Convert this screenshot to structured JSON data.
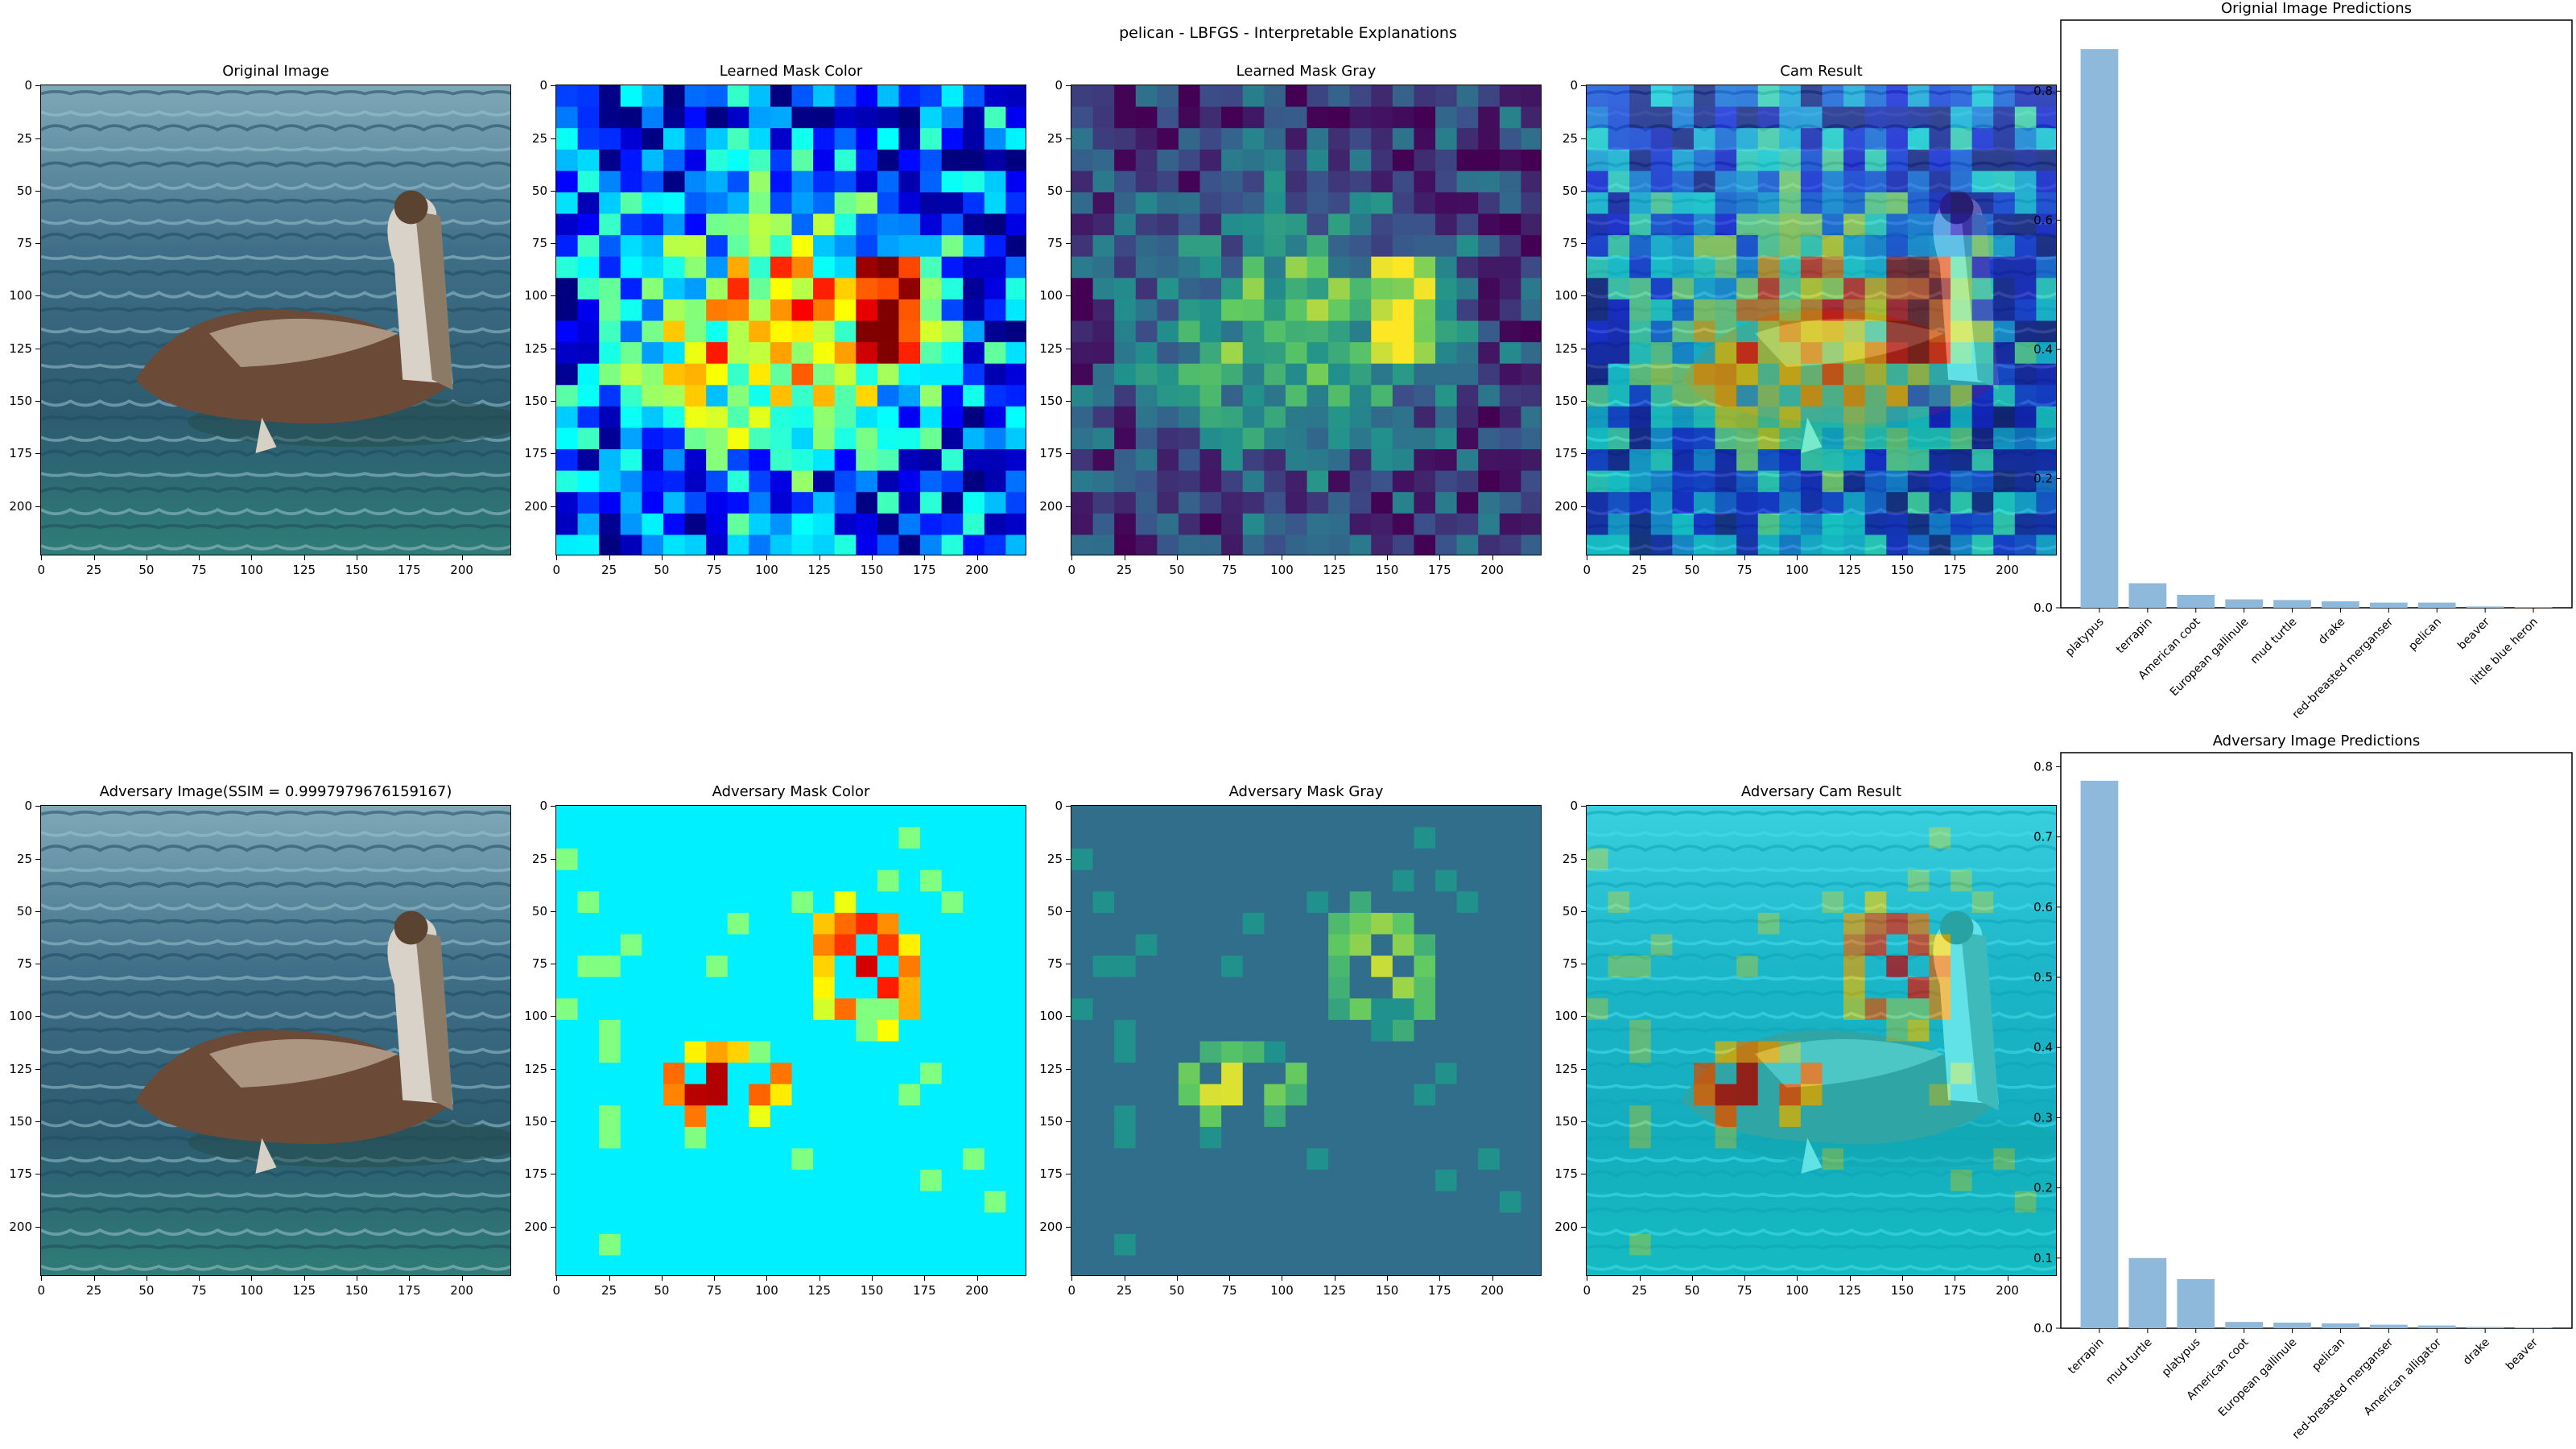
{
  "figure": {
    "title": "pelican - LBFGS - Interpretable Explanations"
  },
  "image_panels": [
    {
      "title": "Original Image",
      "kind": "photo"
    },
    {
      "title": "Learned Mask Color",
      "kind": "mask-jet",
      "mask": "learned"
    },
    {
      "title": "Learned Mask Gray",
      "kind": "mask-viridis",
      "mask": "learned"
    },
    {
      "title": "Cam Result",
      "kind": "cam",
      "mask": "learned"
    },
    {
      "title": "Adversary Image(SSIM = 0.9997979676159167)",
      "kind": "photo"
    },
    {
      "title": "Adversary Mask Color",
      "kind": "mask-jet",
      "mask": "adversary"
    },
    {
      "title": "Adversary Mask Gray",
      "kind": "mask-viridis",
      "mask": "adversary"
    },
    {
      "title": "Adversary Cam Result",
      "kind": "cam",
      "mask": "adversary"
    }
  ],
  "image_axes": {
    "x_ticks": [
      "0",
      "25",
      "50",
      "75",
      "100",
      "125",
      "150",
      "175",
      "200"
    ],
    "y_ticks": [
      "0",
      "25",
      "50",
      "75",
      "100",
      "125",
      "150",
      "175",
      "200"
    ]
  },
  "colors": {
    "bar": "#8fb9da",
    "water": "#3f6f88",
    "pelican": "#6b4a38"
  },
  "chart_data": [
    {
      "type": "bar",
      "title": "Orignial Image Predictions",
      "categories": [
        "platypus",
        "terrapin",
        "American coot",
        "European gallinule",
        "mud turtle",
        "drake",
        "red-breasted merganser",
        "pelican",
        "beaver",
        "little blue heron"
      ],
      "values": [
        0.865,
        0.038,
        0.02,
        0.013,
        0.012,
        0.01,
        0.008,
        0.008,
        0.002,
        0.001
      ],
      "yticks": [
        "0.0",
        "0.2",
        "0.4",
        "0.6",
        "0.8"
      ],
      "ylim": [
        0,
        0.91
      ],
      "xlabel": "",
      "ylabel": ""
    },
    {
      "type": "bar",
      "title": "Adversary Image Predictions",
      "categories": [
        "terrapin",
        "mud turtle",
        "platypus",
        "American coot",
        "European gallinule",
        "pelican",
        "red-breasted merganser",
        "American alligator",
        "drake",
        "beaver"
      ],
      "values": [
        0.78,
        0.1,
        0.07,
        0.009,
        0.008,
        0.007,
        0.005,
        0.004,
        0.002,
        0.001
      ],
      "yticks": [
        "0.0",
        "0.1",
        "0.2",
        "0.3",
        "0.4",
        "0.5",
        "0.6",
        "0.7",
        "0.8"
      ],
      "ylim": [
        0,
        0.82
      ],
      "xlabel": "",
      "ylabel": ""
    }
  ]
}
